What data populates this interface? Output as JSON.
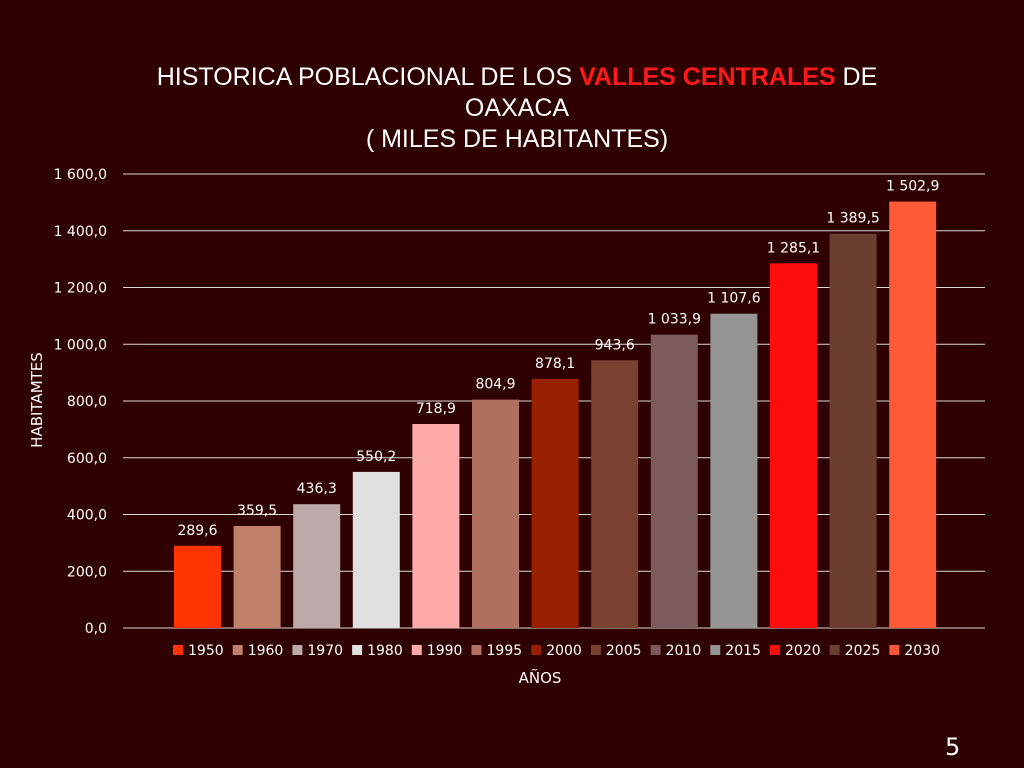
{
  "slide": {
    "title_part1": "HISTORICA POBLACIONAL DE LOS ",
    "title_highlight": "VALLES CENTRALES",
    "title_part2": " DE",
    "title_line2": "OAXACA",
    "title_line3": "( MILES DE HABITANTES)",
    "page_number": "5",
    "highlight_color": "#ff1a1a",
    "background_color": "#2e0000"
  },
  "chart_data": {
    "type": "bar",
    "title": "HISTORICA POBLACIONAL DE LOS VALLES CENTRALES DE OAXACA ( MILES DE HABITANTES)",
    "xlabel": "AÑOS",
    "ylabel": "HABITAMTES",
    "ylim": [
      0,
      1600
    ],
    "ytick_values": [
      0,
      200,
      400,
      600,
      800,
      1000,
      1200,
      1400,
      1600
    ],
    "ytick_labels": [
      "0,0",
      "200,0",
      "400,0",
      "600,0",
      "800,0",
      "1 000,0",
      "1 200,0",
      "1 400,0",
      "1 600,0"
    ],
    "grid": true,
    "legend_position": "bottom",
    "categories": [
      "1950",
      "1960",
      "1970",
      "1980",
      "1990",
      "1995",
      "2000",
      "2005",
      "2010",
      "2015",
      "2020",
      "2025",
      "2030"
    ],
    "values": [
      289.6,
      359.5,
      436.3,
      550.2,
      718.9,
      804.9,
      878.1,
      943.6,
      1033.9,
      1107.6,
      1285.1,
      1389.5,
      1502.9
    ],
    "value_labels": [
      "289,6",
      "359,5",
      "436,3",
      "550,2",
      "718,9",
      "804,9",
      "878,1",
      "943,6",
      "1 033,9",
      "1 107,6",
      "1 285,1",
      "1 389,5",
      "1 502,9"
    ],
    "colors": [
      "#ff3300",
      "#c0806a",
      "#bcaaaa",
      "#e0e0e0",
      "#ffaaaa",
      "#b07060",
      "#992000",
      "#7a4030",
      "#7a5a5a",
      "#959595",
      "#ff0d0d",
      "#6b3e30",
      "#ff5a38"
    ]
  }
}
